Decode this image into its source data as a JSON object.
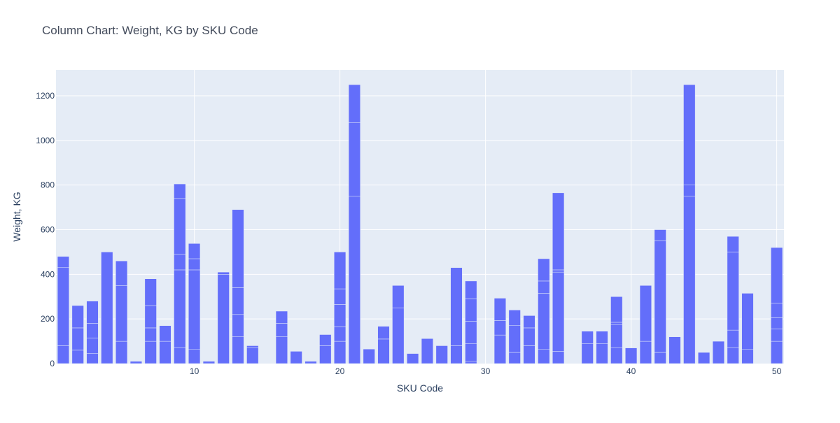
{
  "chart_data": {
    "type": "bar",
    "title": "Column Chart: Weight, KG by SKU Code",
    "xlabel": "SKU Code",
    "ylabel": "Weight, KG",
    "xlim": [
      0.5,
      50.5
    ],
    "ylim": [
      0,
      1316
    ],
    "x_ticks": [
      10,
      20,
      30,
      40,
      50
    ],
    "y_ticks": [
      0,
      200,
      400,
      600,
      800,
      1000,
      1200
    ],
    "grid": true,
    "bar_color": "#636efa",
    "plot_bg": "#e5ecf6",
    "bars": [
      {
        "x": 1,
        "segments": [
          80,
          350,
          50
        ]
      },
      {
        "x": 2,
        "segments": [
          60,
          100,
          100
        ]
      },
      {
        "x": 3,
        "segments": [
          45,
          70,
          65,
          100
        ]
      },
      {
        "x": 4,
        "segments": [
          500
        ]
      },
      {
        "x": 5,
        "segments": [
          100,
          250,
          110
        ]
      },
      {
        "x": 6,
        "segments": [
          10
        ]
      },
      {
        "x": 7,
        "segments": [
          100,
          60,
          100,
          120
        ]
      },
      {
        "x": 8,
        "segments": [
          100,
          70
        ]
      },
      {
        "x": 9,
        "segments": [
          70,
          350,
          70,
          250,
          65
        ]
      },
      {
        "x": 10,
        "segments": [
          65,
          355,
          50,
          68
        ]
      },
      {
        "x": 11,
        "segments": [
          10
        ]
      },
      {
        "x": 12,
        "segments": [
          400,
          10
        ]
      },
      {
        "x": 13,
        "segments": [
          120,
          100,
          120,
          350
        ]
      },
      {
        "x": 14,
        "segments": [
          70,
          10
        ]
      },
      {
        "x": 16,
        "segments": [
          120,
          60,
          55
        ]
      },
      {
        "x": 17,
        "segments": [
          55
        ]
      },
      {
        "x": 18,
        "segments": [
          10
        ]
      },
      {
        "x": 19,
        "segments": [
          80,
          50
        ]
      },
      {
        "x": 20,
        "segments": [
          100,
          65,
          100,
          70,
          165
        ]
      },
      {
        "x": 21,
        "segments": [
          750,
          330,
          170
        ]
      },
      {
        "x": 22,
        "segments": [
          65
        ]
      },
      {
        "x": 23,
        "segments": [
          110,
          57
        ]
      },
      {
        "x": 24,
        "segments": [
          250,
          100
        ]
      },
      {
        "x": 25,
        "segments": [
          45
        ]
      },
      {
        "x": 26,
        "segments": [
          112
        ]
      },
      {
        "x": 27,
        "segments": [
          80
        ]
      },
      {
        "x": 28,
        "segments": [
          80,
          350
        ]
      },
      {
        "x": 29,
        "segments": [
          10,
          80,
          100,
          100,
          80
        ]
      },
      {
        "x": 31,
        "segments": [
          128,
          65,
          100
        ]
      },
      {
        "x": 32,
        "segments": [
          50,
          120,
          70
        ]
      },
      {
        "x": 33,
        "segments": [
          80,
          80,
          55
        ]
      },
      {
        "x": 34,
        "segments": [
          65,
          250,
          55,
          100
        ]
      },
      {
        "x": 35,
        "segments": [
          55,
          355,
          10,
          345
        ]
      },
      {
        "x": 37,
        "segments": [
          90,
          55
        ]
      },
      {
        "x": 38,
        "segments": [
          90,
          55
        ]
      },
      {
        "x": 39,
        "segments": [
          70,
          105,
          10,
          115
        ]
      },
      {
        "x": 40,
        "segments": [
          70
        ]
      },
      {
        "x": 41,
        "segments": [
          100,
          250
        ]
      },
      {
        "x": 42,
        "segments": [
          50,
          500,
          50
        ]
      },
      {
        "x": 43,
        "segments": [
          120
        ]
      },
      {
        "x": 44,
        "segments": [
          750,
          50,
          450
        ]
      },
      {
        "x": 45,
        "segments": [
          50
        ]
      },
      {
        "x": 46,
        "segments": [
          100
        ]
      },
      {
        "x": 47,
        "segments": [
          70,
          80,
          350,
          70
        ]
      },
      {
        "x": 48,
        "segments": [
          65,
          250
        ]
      },
      {
        "x": 50,
        "segments": [
          100,
          55,
          50,
          65,
          250
        ]
      }
    ]
  }
}
